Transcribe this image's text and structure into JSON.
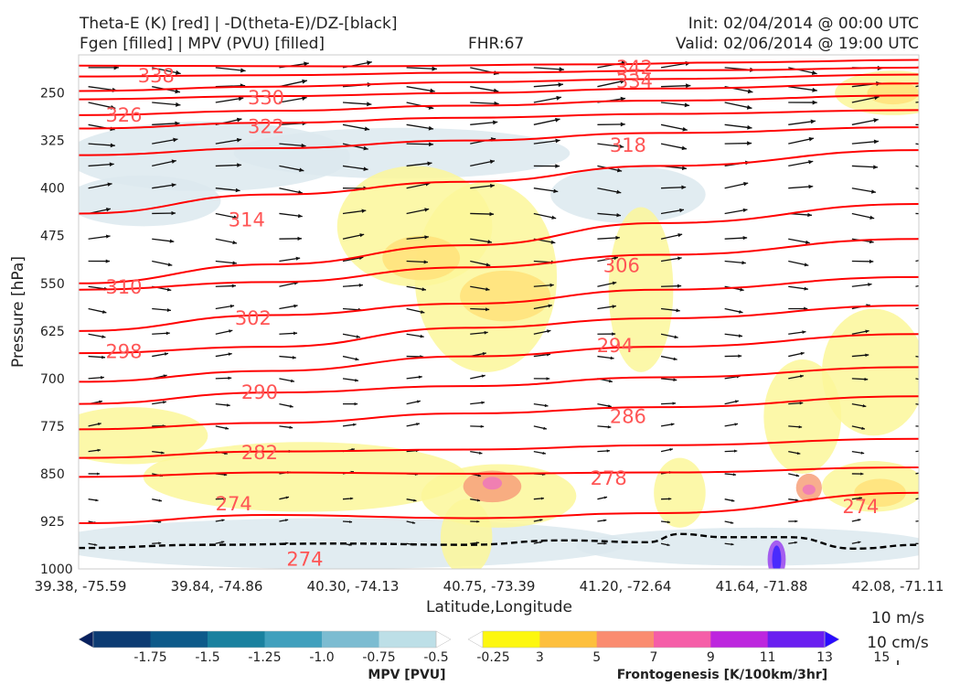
{
  "header": {
    "title_line1": "Theta-E (K) [red] | -D(theta-E)/DZ-[black]",
    "title_line2": "Fgen [filled] | MPV (PVU) [filled]",
    "fhr": "FHR:67",
    "init": "Init: 02/04/2014 @ 00:00 UTC",
    "valid": "Valid: 02/06/2014 @ 19:00 UTC"
  },
  "colors": {
    "theta_e": "#ff0000",
    "theta_e_label": "#ff5555",
    "arrows": "#111111",
    "mpv_light": "#dce9ee",
    "fgen_yellow": "#fbf79a",
    "fgen_gold": "#ffe27a",
    "fgen_salmon": "#f7a07a",
    "fgen_pink": "#ee77bb",
    "fgen_purple": "#9944ee",
    "fgen_blue": "#3a22ff"
  },
  "chart_data": {
    "type": "cross-section",
    "xlabel": "Latitude,Longitude",
    "ylabel": "Pressure [hPa]",
    "x_ticks": [
      "39.38, -75.59",
      "39.84, -74.86",
      "40.30, -74.13",
      "40.75, -73.39",
      "41.20, -72.64",
      "41.64, -71.88",
      "42.08, -71.11"
    ],
    "y_ticks": [
      250,
      325,
      400,
      475,
      550,
      625,
      700,
      775,
      850,
      925,
      1000
    ],
    "ylim": [
      190,
      1000
    ],
    "y_inverted": true,
    "x_range": [
      0,
      13
    ],
    "theta_e_contours": [
      {
        "value": 342,
        "points": [
          [
            0,
            207
          ],
          [
            4,
            208
          ],
          [
            8,
            205
          ],
          [
            10,
            202
          ],
          [
            13,
            198
          ]
        ]
      },
      {
        "value": 338,
        "points": [
          [
            0,
            224
          ],
          [
            3,
            222
          ],
          [
            6,
            218
          ],
          [
            10,
            214
          ],
          [
            13,
            210
          ]
        ]
      },
      {
        "value": 334,
        "points": [
          [
            0,
            247
          ],
          [
            3,
            240
          ],
          [
            6,
            233
          ],
          [
            9,
            228
          ],
          [
            13,
            221
          ]
        ]
      },
      {
        "value": 330,
        "points": [
          [
            0,
            260
          ],
          [
            3,
            255
          ],
          [
            6,
            250
          ],
          [
            9,
            243
          ],
          [
            13,
            235
          ]
        ]
      },
      {
        "value": 326,
        "points": [
          [
            0,
            285
          ],
          [
            3,
            278
          ],
          [
            6,
            270
          ],
          [
            9,
            262
          ],
          [
            13,
            254
          ]
        ]
      },
      {
        "value": 322,
        "points": [
          [
            0,
            306
          ],
          [
            3,
            297
          ],
          [
            6,
            289
          ],
          [
            9,
            283
          ],
          [
            13,
            277
          ]
        ]
      },
      {
        "value": 318,
        "points": [
          [
            0,
            348
          ],
          [
            3,
            337
          ],
          [
            6,
            325
          ],
          [
            9,
            313
          ],
          [
            13,
            304
          ]
        ]
      },
      {
        "value": 314,
        "points": [
          [
            0,
            440
          ],
          [
            3,
            410
          ],
          [
            6,
            390
          ],
          [
            9,
            365
          ],
          [
            13,
            340
          ]
        ]
      },
      {
        "value": 310,
        "points": [
          [
            0,
            550
          ],
          [
            3,
            520
          ],
          [
            6,
            490
          ],
          [
            9,
            455
          ],
          [
            13,
            425
          ]
        ]
      },
      {
        "value": 306,
        "points": [
          [
            0,
            560
          ],
          [
            3,
            548
          ],
          [
            6,
            525
          ],
          [
            9,
            505
          ],
          [
            13,
            480
          ]
        ]
      },
      {
        "value": 302,
        "points": [
          [
            0,
            625
          ],
          [
            3,
            600
          ],
          [
            6,
            582
          ],
          [
            9,
            560
          ],
          [
            13,
            540
          ]
        ]
      },
      {
        "value": 298,
        "points": [
          [
            0,
            660
          ],
          [
            3,
            650
          ],
          [
            6,
            620
          ],
          [
            9,
            605
          ],
          [
            13,
            585
          ]
        ]
      },
      {
        "value": 294,
        "points": [
          [
            0,
            705
          ],
          [
            3,
            688
          ],
          [
            6,
            665
          ],
          [
            9,
            650
          ],
          [
            13,
            630
          ]
        ]
      },
      {
        "value": 290,
        "points": [
          [
            0,
            740
          ],
          [
            3,
            722
          ],
          [
            6,
            712
          ],
          [
            9,
            698
          ],
          [
            13,
            682
          ]
        ]
      },
      {
        "value": 286,
        "points": [
          [
            0,
            780
          ],
          [
            3,
            770
          ],
          [
            6,
            755
          ],
          [
            9,
            745
          ],
          [
            13,
            728
          ]
        ]
      },
      {
        "value": 282,
        "points": [
          [
            0,
            825
          ],
          [
            3,
            815
          ],
          [
            6,
            812
          ],
          [
            9,
            805
          ],
          [
            13,
            795
          ]
        ]
      },
      {
        "value": 278,
        "points": [
          [
            0,
            855
          ],
          [
            3,
            848
          ],
          [
            6,
            850
          ],
          [
            9,
            848
          ],
          [
            13,
            840
          ]
        ]
      },
      {
        "value": 274,
        "points": [
          [
            0,
            928
          ],
          [
            3,
            915
          ],
          [
            6,
            920
          ],
          [
            9,
            912
          ],
          [
            13,
            880
          ]
        ]
      }
    ],
    "theta_e_labels": [
      {
        "value": 342,
        "x": 8.6,
        "y": 210
      },
      {
        "value": 338,
        "x": 1.2,
        "y": 223
      },
      {
        "value": 334,
        "x": 8.6,
        "y": 232
      },
      {
        "value": 330,
        "x": 2.9,
        "y": 258
      },
      {
        "value": 326,
        "x": 0.7,
        "y": 285
      },
      {
        "value": 322,
        "x": 2.9,
        "y": 303
      },
      {
        "value": 318,
        "x": 8.5,
        "y": 333
      },
      {
        "value": 314,
        "x": 2.6,
        "y": 450
      },
      {
        "value": 310,
        "x": 0.7,
        "y": 556
      },
      {
        "value": 306,
        "x": 8.4,
        "y": 522
      },
      {
        "value": 302,
        "x": 2.7,
        "y": 605
      },
      {
        "value": 298,
        "x": 0.7,
        "y": 658
      },
      {
        "value": 294,
        "x": 8.3,
        "y": 648
      },
      {
        "value": 290,
        "x": 2.8,
        "y": 722
      },
      {
        "value": 286,
        "x": 8.5,
        "y": 760
      },
      {
        "value": 282,
        "x": 2.8,
        "y": 817
      },
      {
        "value": 278,
        "x": 8.2,
        "y": 857
      },
      {
        "value": 274,
        "x": 2.4,
        "y": 898
      },
      {
        "value": 274,
        "x": 3.5,
        "y": 985
      },
      {
        "value": 274,
        "x": 12.1,
        "y": 902
      }
    ],
    "boundary_layer_dashed": [
      [
        0,
        967
      ],
      [
        2,
        962
      ],
      [
        4,
        960
      ],
      [
        6,
        962
      ],
      [
        7.5,
        955
      ],
      [
        8.8,
        958
      ],
      [
        9.3,
        945
      ],
      [
        10,
        950
      ],
      [
        11,
        950
      ],
      [
        12,
        968
      ],
      [
        13,
        962
      ]
    ],
    "mpv_colorbar": {
      "label": "MPV [PVU]",
      "ticks": [
        "-1.75",
        "-1.5",
        "-1.25",
        "-1.0",
        "-0.75",
        "-0.5",
        "-0.25"
      ],
      "colors": [
        "#08205e",
        "#0c3b73",
        "#0d5a8a",
        "#19819f",
        "#40a0bd",
        "#7cbcd1",
        "#bddfe7",
        "#ffffff"
      ]
    },
    "fgen_colorbar": {
      "label": "Frontogenesis [K/100km/3hr]",
      "ticks": [
        "3",
        "5",
        "7",
        "9",
        "11",
        "13",
        "15"
      ],
      "colors": [
        "#ffffff",
        "#fdf70f",
        "#fdc03d",
        "#fa8c70",
        "#f55ea8",
        "#bd26de",
        "#6a1ef0",
        "#2a0cff"
      ]
    },
    "wind_reference": {
      "u": "10 m/s",
      "w": "10 cm/s"
    }
  }
}
